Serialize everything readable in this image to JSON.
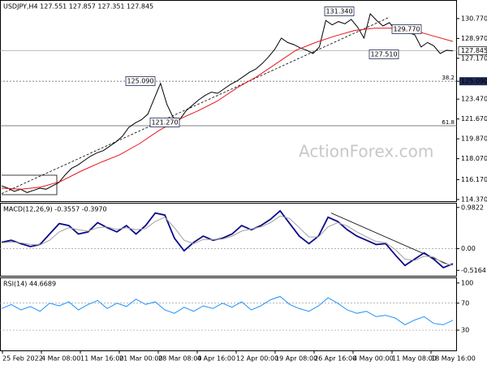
{
  "chart_data": [
    {
      "type": "line",
      "title": "USDJPY,H4  127.551 127.857 127.351 127.845",
      "watermark": "ActionForex.com",
      "ylim": [
        114.22,
        132.38
      ],
      "yticks": [
        {
          "value": 130.77,
          "label": "130.770"
        },
        {
          "value": 128.97,
          "label": "128.970"
        },
        {
          "value": 127.17,
          "label": "127.170"
        },
        {
          "value": 125.09,
          "label": "125.090"
        },
        {
          "value": 123.47,
          "label": "123.470"
        },
        {
          "value": 121.67,
          "label": "121.670"
        },
        {
          "value": 119.87,
          "label": "119.870"
        },
        {
          "value": 118.07,
          "label": "118.070"
        },
        {
          "value": 116.17,
          "label": "116.170"
        },
        {
          "value": 114.37,
          "label": "114.370"
        }
      ],
      "last_price": 127.845,
      "levels": [
        {
          "ratio": 38.2,
          "value": 125.09
        },
        {
          "ratio": 61.8,
          "value": 121.06
        }
      ],
      "trendline": [
        114.9,
        130.9
      ],
      "annotations": [
        {
          "value": 131.34,
          "label": "131.340"
        },
        {
          "value": 129.77,
          "label": "129.770"
        },
        {
          "value": 127.51,
          "label": "127.510"
        },
        {
          "value": 125.09,
          "label": "125.090"
        },
        {
          "value": 121.27,
          "label": "121.270"
        }
      ],
      "series": [
        {
          "color": "#000000",
          "values": [
            115.6,
            115.4,
            115.1,
            115.3,
            115.0,
            115.2,
            115.4,
            115.3,
            115.6,
            115.9,
            116.6,
            117.2,
            117.5,
            117.9,
            118.3,
            118.6,
            118.8,
            119.2,
            119.6,
            120.1,
            120.9,
            121.3,
            121.6,
            122.1,
            123.5,
            124.9,
            123.0,
            121.8,
            121.6,
            122.4,
            122.9,
            123.4,
            123.8,
            124.1,
            124.0,
            124.4,
            124.8,
            125.1,
            125.5,
            125.9,
            126.2,
            126.7,
            127.3,
            128.0,
            129.0,
            128.6,
            128.4,
            128.1,
            127.9,
            127.6,
            128.2,
            130.6,
            130.2,
            130.5,
            130.3,
            130.7,
            130.0,
            129.0,
            131.2,
            130.6,
            130.1,
            130.4,
            129.7,
            129.8,
            129.5,
            129.3,
            128.2,
            128.6,
            128.3,
            127.6,
            127.9,
            127.845
          ]
        },
        {
          "color": "#e8141b",
          "values": [
            115.4,
            115.3,
            115.5,
            116.0,
            116.9,
            117.7,
            118.4,
            119.4,
            120.6,
            121.6,
            122.4,
            123.3,
            124.5,
            125.5,
            126.7,
            127.9,
            128.6,
            129.2,
            129.7,
            129.9,
            129.9,
            129.7,
            129.2,
            128.7
          ]
        }
      ]
    },
    {
      "type": "line",
      "title": "MACD(12,26,9) -0.3557 -0.3970",
      "ylim": [
        -0.646,
        1.075
      ],
      "yticks": [
        0.9822,
        {
          "value": 0,
          "label": "0.00"
        },
        -0.5164
      ],
      "trendline": [
        0.85,
        -0.4
      ],
      "series": [
        {
          "color": "#0a0a8a",
          "values": [
            0.15,
            0.2,
            0.12,
            0.05,
            0.1,
            0.35,
            0.6,
            0.55,
            0.35,
            0.4,
            0.62,
            0.5,
            0.4,
            0.55,
            0.35,
            0.55,
            0.85,
            0.8,
            0.25,
            -0.05,
            0.15,
            0.3,
            0.2,
            0.25,
            0.35,
            0.55,
            0.45,
            0.55,
            0.7,
            0.9,
            0.6,
            0.3,
            0.12,
            0.3,
            0.75,
            0.65,
            0.45,
            0.3,
            0.2,
            0.1,
            0.12,
            -0.15,
            -0.4,
            -0.25,
            -0.1,
            -0.25,
            -0.45,
            -0.36
          ]
        },
        {
          "color": "#a0a0a0",
          "values": [
            0.14,
            0.16,
            0.14,
            0.1,
            0.09,
            0.2,
            0.4,
            0.5,
            0.45,
            0.42,
            0.5,
            0.52,
            0.46,
            0.5,
            0.45,
            0.48,
            0.65,
            0.75,
            0.5,
            0.2,
            0.12,
            0.22,
            0.22,
            0.23,
            0.3,
            0.42,
            0.47,
            0.52,
            0.62,
            0.78,
            0.72,
            0.5,
            0.28,
            0.28,
            0.52,
            0.62,
            0.54,
            0.4,
            0.28,
            0.17,
            0.14,
            -0.02,
            -0.25,
            -0.28,
            -0.18,
            -0.2,
            -0.35,
            -0.397
          ]
        }
      ]
    },
    {
      "type": "line",
      "title": "RSI(14) 44.6689",
      "ylim": [
        0,
        107
      ],
      "yticks": [
        100,
        70,
        30
      ],
      "x_labels": [
        "25 Feb 2022",
        "4 Mar 08:00",
        "11 Mar 16:00",
        "21 Mar 00:00",
        "28 Mar 08:00",
        "4 Apr 16:00",
        "12 Apr 00:00",
        "19 Apr 08:00",
        "26 Apr 16:00",
        "4 May 00:00",
        "11 May 08:00",
        "18 May 16:00"
      ],
      "series": [
        {
          "color": "#1e90ff",
          "values": [
            62,
            68,
            60,
            65,
            58,
            70,
            66,
            72,
            60,
            68,
            74,
            62,
            70,
            65,
            76,
            68,
            72,
            60,
            55,
            64,
            58,
            66,
            62,
            70,
            64,
            72,
            60,
            66,
            75,
            80,
            68,
            62,
            58,
            66,
            78,
            70,
            60,
            55,
            58,
            50,
            52,
            48,
            38,
            45,
            50,
            40,
            38,
            44.7
          ]
        }
      ]
    }
  ]
}
